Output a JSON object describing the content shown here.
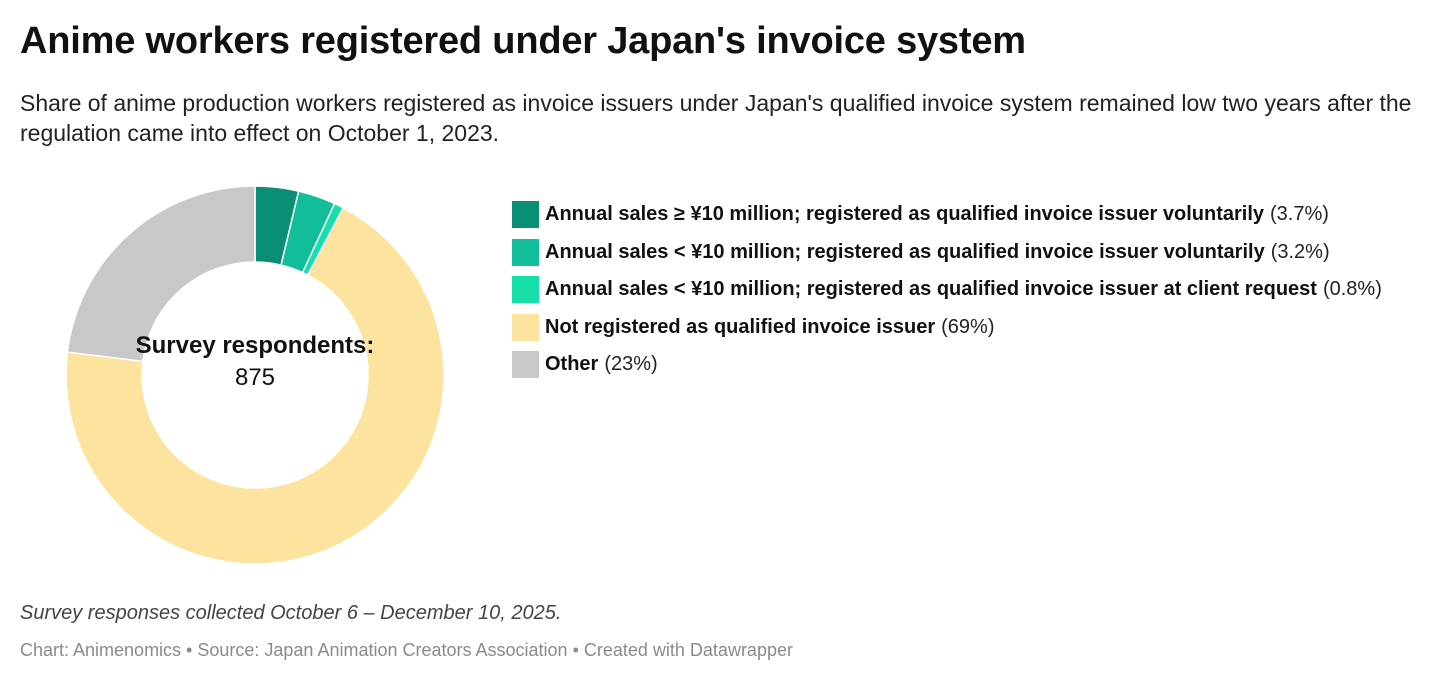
{
  "chart_data": {
    "type": "pie",
    "title": "Anime workers registered under Japan's invoice system",
    "subtitle": "Share of anime production workers registered as invoice issuers under Japan's qualified invoice system remained low two years after the regulation came into effect on October 1, 2023.",
    "center_label": {
      "title": "Survey respondents:",
      "value": "875"
    },
    "slices": [
      {
        "label": "Annual sales ≥ ¥10 million; registered as qualified invoice issuer voluntarily",
        "value": 3.7,
        "display": "(3.7%)",
        "color": "#0a8f76"
      },
      {
        "label": "Annual sales < ¥10 million; registered as qualified invoice issuer voluntarily",
        "value": 3.2,
        "display": "(3.2%)",
        "color": "#12bd9a"
      },
      {
        "label": "Annual sales < ¥10 million; registered as qualified invoice issuer at client request",
        "value": 0.8,
        "display": "(0.8%)",
        "color": "#17dfa9"
      },
      {
        "label": "Not registered as qualified invoice issuer",
        "value": 69,
        "display": "(69%)",
        "color": "#fde49e"
      },
      {
        "label": "Other",
        "value": 23,
        "display": "(23%)",
        "color": "#c8c8c8"
      }
    ],
    "legend_position": "right"
  },
  "notes": "Survey responses collected October 6 – December 10, 2025.",
  "footer": "Chart: Animenomics • Source: Japan Animation Creators Association • Created with Datawrapper"
}
